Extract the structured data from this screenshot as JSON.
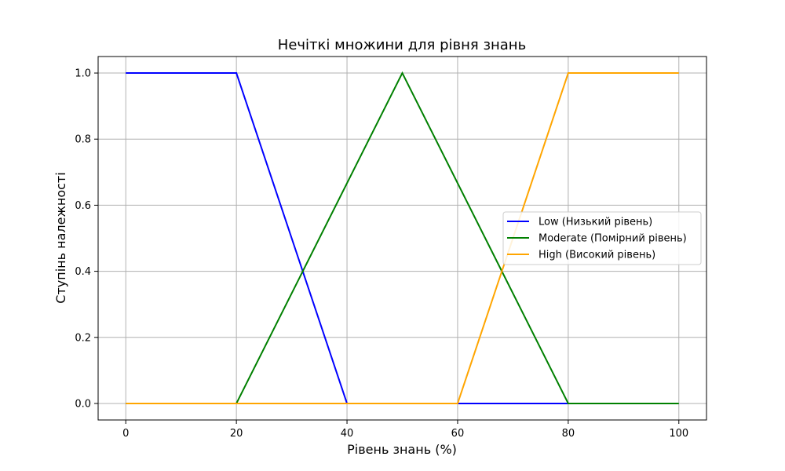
{
  "chart_data": {
    "type": "line",
    "title": "Нечіткі множини для рівня знань",
    "xlabel": "Рівень знань (%)",
    "ylabel": "Ступінь належності",
    "xlim": [
      -5,
      105
    ],
    "ylim": [
      -0.05,
      1.05
    ],
    "xticks": [
      0,
      20,
      40,
      60,
      80,
      100
    ],
    "yticks": [
      0.0,
      0.2,
      0.4,
      0.6,
      0.8,
      1.0
    ],
    "xtick_labels": [
      "0",
      "20",
      "40",
      "60",
      "80",
      "100"
    ],
    "ytick_labels": [
      "0.0",
      "0.2",
      "0.4",
      "0.6",
      "0.8",
      "1.0"
    ],
    "grid": true,
    "legend_position": "center-right",
    "series": [
      {
        "name": "Low (Низький рівень)",
        "color": "#0000ff",
        "x": [
          0,
          20,
          40,
          60,
          80
        ],
        "y": [
          1,
          1,
          0,
          0,
          0
        ]
      },
      {
        "name": "Moderate (Помірний рівень)",
        "color": "#008000",
        "x": [
          0,
          20,
          50,
          80,
          100
        ],
        "y": [
          0,
          0,
          1,
          0,
          0
        ]
      },
      {
        "name": "High (Високий рівень)",
        "color": "#ffa500",
        "x": [
          0,
          20,
          40,
          60,
          80,
          100
        ],
        "y": [
          0,
          0,
          0,
          0,
          1,
          1
        ]
      }
    ]
  }
}
